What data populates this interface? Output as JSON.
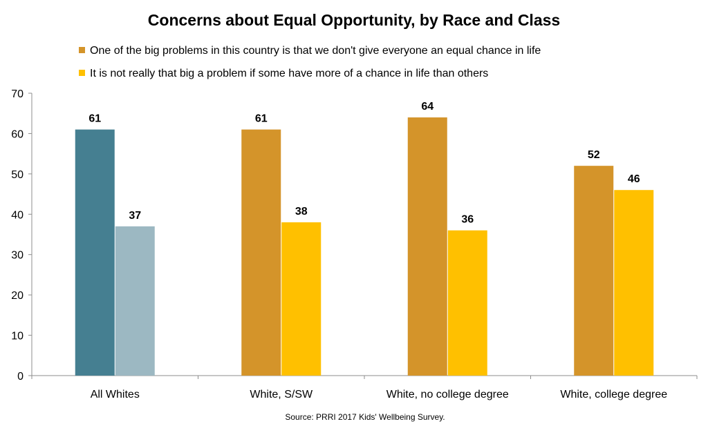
{
  "chart_data": {
    "type": "bar",
    "title": "Concerns about Equal Opportunity, by Race and Class",
    "categories": [
      "All Whites",
      "White, S/SW",
      "White, no college degree",
      "White, college degree"
    ],
    "series": [
      {
        "name": "One of the big problems in this country is that we don't give everyone an equal chance in life",
        "values": [
          61,
          61,
          64,
          52
        ],
        "color": "#D4942A",
        "first_category_color": "#457F91"
      },
      {
        "name": "It is not really that big a problem if some have more of a chance in life than others",
        "values": [
          37,
          38,
          36,
          46
        ],
        "color": "#FFC000",
        "first_category_color": "#9CB8C2"
      }
    ],
    "ylim": [
      0,
      70
    ],
    "yticks": [
      0,
      10,
      20,
      30,
      40,
      50,
      60,
      70
    ],
    "xlabel": "",
    "ylabel": "",
    "grid": false,
    "legend_position": "top",
    "data_labels": true
  },
  "source": "Source: PRRI 2017 Kids' Wellbeing Survey."
}
